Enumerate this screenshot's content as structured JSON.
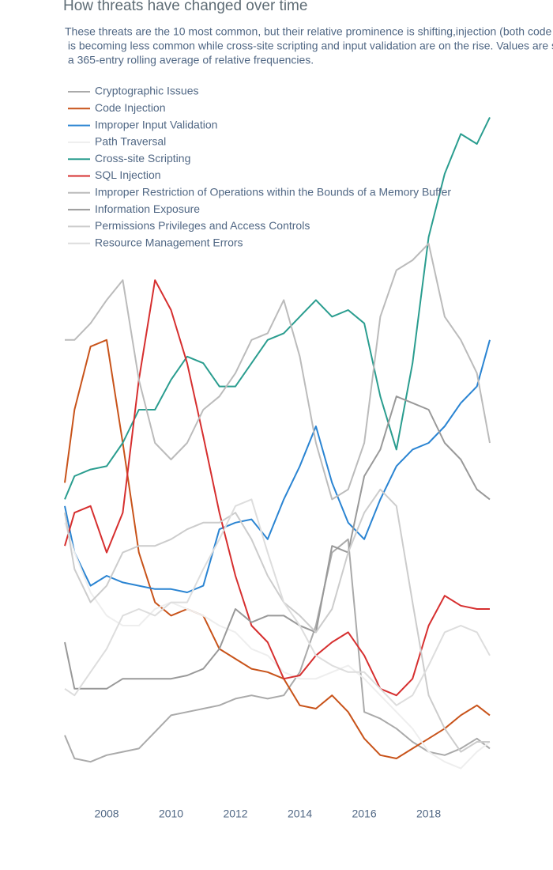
{
  "chart_data": {
    "type": "line",
    "title": "How threats have changed over time",
    "subtitle": [
      "These threats are the 10 most common, but their relative prominence is shifting,injection (both code",
      " is becoming less common while cross-site scripting and input validation are on the rise. Values are s",
      " a 365-entry rolling average of relative frequencies."
    ],
    "x": [
      2006.7,
      2007,
      2007.5,
      2008,
      2008.5,
      2009,
      2009.5,
      2010,
      2010.5,
      2011,
      2011.5,
      2012,
      2012.5,
      2013,
      2013.5,
      2014,
      2014.5,
      2015,
      2015.5,
      2016,
      2016.5,
      2017,
      2017.5,
      2018,
      2018.5,
      2019,
      2019.5,
      2019.9
    ],
    "xlim": [
      2006.65,
      2019.9
    ],
    "xticks": [
      2008,
      2010,
      2012,
      2014,
      2016,
      2018
    ],
    "ylim": [
      0,
      20
    ],
    "series": [
      {
        "name": "Cryptographic Issues",
        "color": "#aaaaaa",
        "values": [
          1.2,
          0.5,
          0.4,
          0.6,
          0.7,
          0.8,
          1.3,
          1.8,
          1.9,
          2.0,
          2.1,
          2.3,
          2.4,
          2.3,
          2.4,
          3.1,
          4.5,
          6.7,
          7.1,
          1.9,
          1.7,
          1.4,
          1.0,
          0.7,
          0.6,
          0.8,
          1.1,
          0.8
        ]
      },
      {
        "name": "Code Injection",
        "color": "#c8531a",
        "values": [
          8.8,
          11.0,
          12.9,
          13.1,
          10.0,
          6.7,
          5.2,
          4.8,
          5.0,
          4.8,
          3.8,
          3.5,
          3.2,
          3.1,
          2.9,
          2.1,
          2.0,
          2.4,
          1.9,
          1.1,
          0.6,
          0.5,
          0.8,
          1.1,
          1.4,
          1.8,
          2.1,
          1.8
        ]
      },
      {
        "name": "Improper Input Validation",
        "color": "#2a84d2",
        "values": [
          8.1,
          6.7,
          5.7,
          6.0,
          5.8,
          5.7,
          5.6,
          5.6,
          5.5,
          5.7,
          7.4,
          7.6,
          7.7,
          7.1,
          8.3,
          9.3,
          10.5,
          8.8,
          7.6,
          7.1,
          8.3,
          9.3,
          9.8,
          10.0,
          10.5,
          11.2,
          11.7,
          13.1
        ]
      },
      {
        "name": "Path Traversal",
        "color": "#eeeeee",
        "values": [
          7.6,
          6.7,
          5.5,
          4.8,
          4.5,
          4.5,
          5.0,
          5.2,
          5.0,
          4.8,
          4.5,
          4.3,
          3.8,
          3.6,
          3.1,
          2.9,
          2.9,
          3.1,
          3.3,
          2.9,
          2.4,
          1.9,
          1.4,
          0.7,
          0.4,
          0.2,
          0.7,
          1.0
        ]
      },
      {
        "name": "Cross-site Scripting",
        "color": "#2a9d8f",
        "values": [
          8.3,
          9.0,
          9.2,
          9.3,
          10.0,
          11.0,
          11.0,
          11.9,
          12.6,
          12.4,
          11.7,
          11.7,
          12.4,
          13.1,
          13.3,
          13.8,
          14.3,
          13.8,
          14.0,
          13.6,
          11.4,
          9.8,
          12.4,
          16.2,
          18.1,
          19.3,
          19.0,
          19.8
        ]
      },
      {
        "name": "SQL Injection",
        "color": "#d62f2f",
        "values": [
          6.9,
          7.9,
          8.1,
          6.7,
          7.9,
          11.9,
          14.9,
          14.0,
          12.4,
          10.2,
          7.9,
          6.0,
          4.5,
          4.0,
          2.9,
          3.0,
          3.6,
          4.0,
          4.3,
          3.6,
          2.6,
          2.4,
          2.9,
          4.5,
          5.4,
          5.1,
          5.0,
          5.0
        ]
      },
      {
        "name": "Improper Restriction of Operations within the Bounds of a Memory Buffer",
        "color": "#bbbbbb",
        "values": [
          13.1,
          13.1,
          13.6,
          14.3,
          14.9,
          11.9,
          10.0,
          9.5,
          10.0,
          11.0,
          11.4,
          12.1,
          13.1,
          13.3,
          14.3,
          12.6,
          10.0,
          8.3,
          8.6,
          10.0,
          13.8,
          15.2,
          15.5,
          16.0,
          13.8,
          13.1,
          12.1,
          10.0
        ]
      },
      {
        "name": "Information Exposure",
        "color": "#999999",
        "values": [
          4.0,
          2.6,
          2.6,
          2.6,
          2.9,
          2.9,
          2.9,
          2.9,
          3.0,
          3.2,
          3.8,
          5.0,
          4.6,
          4.8,
          4.8,
          4.5,
          4.3,
          6.9,
          6.7,
          9.0,
          9.8,
          11.4,
          11.2,
          11.0,
          10.0,
          9.5,
          8.6,
          8.3
        ]
      },
      {
        "name": "Permissions Privileges and Access Controls",
        "color": "#cccccc",
        "values": [
          7.9,
          6.2,
          5.2,
          5.7,
          6.7,
          6.9,
          6.9,
          7.1,
          7.4,
          7.6,
          7.6,
          7.9,
          7.1,
          6.0,
          5.2,
          4.8,
          4.3,
          5.0,
          6.7,
          7.9,
          8.6,
          8.1,
          5.2,
          2.4,
          1.4,
          0.7,
          1.0,
          1.0
        ]
      },
      {
        "name": "Resource Management Errors",
        "color": "#dddddd",
        "values": [
          2.6,
          2.4,
          3.1,
          3.8,
          4.8,
          5.0,
          4.8,
          5.2,
          5.2,
          6.2,
          7.1,
          8.1,
          8.3,
          6.7,
          5.2,
          4.5,
          3.6,
          3.3,
          3.1,
          3.1,
          2.6,
          2.1,
          2.4,
          3.3,
          4.3,
          4.5,
          4.3,
          3.6
        ]
      }
    ]
  }
}
